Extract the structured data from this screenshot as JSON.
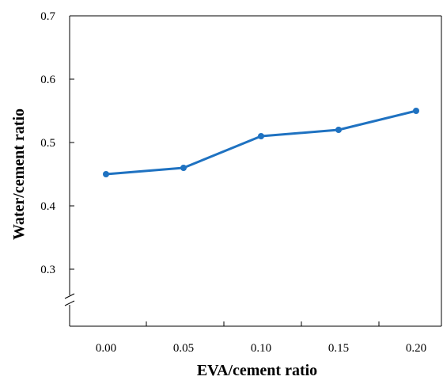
{
  "chart_data": {
    "type": "line",
    "title": "",
    "xlabel": "EVA/cement ratio",
    "ylabel": "Water/cement ratio",
    "x": [
      0.0,
      0.05,
      0.1,
      0.15,
      0.2
    ],
    "x_tick_labels": [
      "0.00",
      "0.05",
      "0.10",
      "0.15",
      "0.20"
    ],
    "y_tick_labels": [
      "0.3",
      "0.4",
      "0.5",
      "0.6",
      "0.7"
    ],
    "y_ticks": [
      0.3,
      0.4,
      0.5,
      0.6,
      0.7
    ],
    "ylim": [
      0.3,
      0.7
    ],
    "y_axis_break": true,
    "grid": false,
    "series": [
      {
        "values": [
          0.45,
          0.46,
          0.51,
          0.52,
          0.55
        ],
        "color": "#1f72c1"
      }
    ]
  }
}
